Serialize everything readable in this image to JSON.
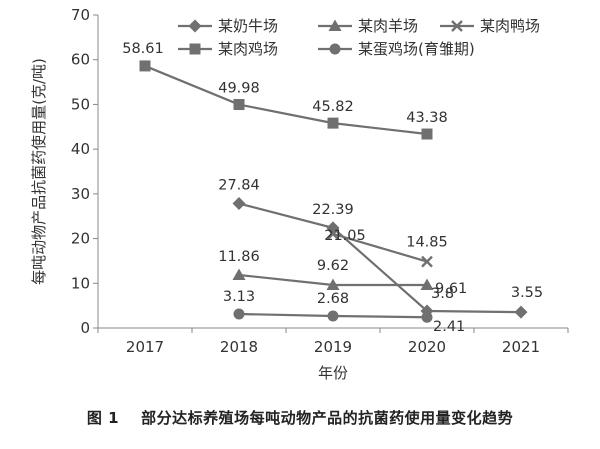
{
  "caption": {
    "figure_number": "图 1",
    "text": "部分达标养殖场每吨动物产品的抗菌药使用量变化趋势"
  },
  "chart_data": {
    "type": "line",
    "xlabel": "年份",
    "ylabel": "每吨动物产品抗菌药使用量(克/吨)",
    "ylim": [
      0,
      70
    ],
    "yticks": [
      0,
      10,
      20,
      30,
      40,
      50,
      60,
      70
    ],
    "categories": [
      "2017",
      "2018",
      "2019",
      "2020",
      "2021"
    ],
    "grid": false,
    "legend_position": "top-right",
    "series": [
      {
        "name": "某奶牛场",
        "marker": "diamond",
        "color": "#707070",
        "points": [
          {
            "x": "2018",
            "y": 27.84,
            "label": "27.84"
          },
          {
            "x": "2019",
            "y": 22.39,
            "label": "22.39"
          },
          {
            "x": "2020",
            "y": 3.8,
            "label": "3.8"
          },
          {
            "x": "2021",
            "y": 3.55,
            "label": "3.55"
          }
        ]
      },
      {
        "name": "某肉羊场",
        "marker": "triangle",
        "color": "#707070",
        "points": [
          {
            "x": "2018",
            "y": 11.86,
            "label": "11.86"
          },
          {
            "x": "2019",
            "y": 9.62,
            "label": "9.62"
          },
          {
            "x": "2020",
            "y": 9.61,
            "label": "9.61"
          }
        ]
      },
      {
        "name": "某肉鸭场",
        "marker": "x",
        "color": "#707070",
        "points": [
          {
            "x": "2019",
            "y": 21.05,
            "label": "21.05"
          },
          {
            "x": "2020",
            "y": 14.85,
            "label": "14.85"
          }
        ]
      },
      {
        "name": "某肉鸡场",
        "marker": "square",
        "color": "#707070",
        "points": [
          {
            "x": "2017",
            "y": 58.61,
            "label": "58.61"
          },
          {
            "x": "2018",
            "y": 49.98,
            "label": "49.98"
          },
          {
            "x": "2019",
            "y": 45.82,
            "label": "45.82"
          },
          {
            "x": "2020",
            "y": 43.38,
            "label": "43.38"
          }
        ]
      },
      {
        "name": "某蛋鸡场(育雏期)",
        "marker": "circle",
        "color": "#707070",
        "points": [
          {
            "x": "2018",
            "y": 3.13,
            "label": "3.13"
          },
          {
            "x": "2019",
            "y": 2.68,
            "label": "2.68"
          },
          {
            "x": "2020",
            "y": 2.41,
            "label": "2.41"
          }
        ]
      }
    ]
  }
}
